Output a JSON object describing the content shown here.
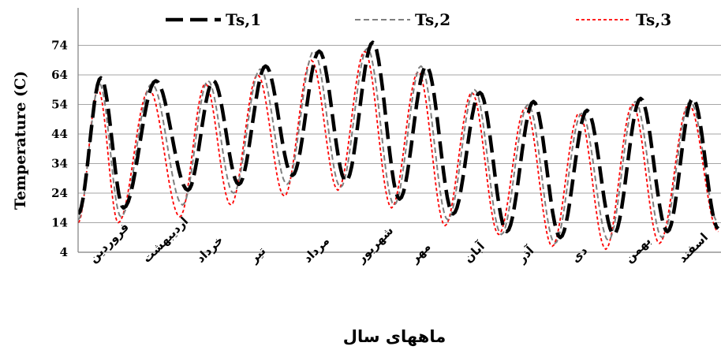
{
  "chart_data": {
    "type": "line",
    "ylabel": "Temperature (C)",
    "xlabel": "ماههای سال",
    "ylim": [
      4,
      84
    ],
    "yticks": [
      4,
      14,
      24,
      34,
      44,
      54,
      64,
      74
    ],
    "grid": "horizontal",
    "legend_position": "top",
    "categories": [
      "فروردین",
      "اردیبهشت",
      "خرداد",
      "تیر",
      "مرداد",
      "شهریور",
      "مهر",
      "آبان",
      "آذر",
      "دی",
      "بهمن",
      "اسفند"
    ],
    "series": [
      {
        "name": "Ts,1",
        "color": "#000000",
        "style": "long-dash",
        "peaks": [
          63,
          62,
          62,
          67,
          72,
          75,
          67,
          58,
          55,
          52,
          56,
          56
        ],
        "troughs": [
          17,
          19,
          25,
          27,
          30,
          28,
          22,
          17,
          11,
          9,
          10,
          11,
          12
        ],
        "trough_x": [
          0,
          0.85,
          2.05,
          3.0,
          4.0,
          5.0,
          6.0,
          7.0,
          8.0,
          9.0,
          10.0,
          11.0,
          11.95
        ]
      },
      {
        "name": "Ts,2",
        "color": "#7f7f7f",
        "style": "dash",
        "peaks": [
          61,
          61,
          62,
          66,
          72,
          73,
          67,
          59,
          54,
          51,
          55,
          55
        ],
        "troughs": [
          15,
          16,
          20,
          24,
          27,
          26,
          20,
          15,
          10,
          7,
          8,
          9,
          14
        ],
        "trough_x": [
          0,
          0.8,
          1.95,
          2.9,
          3.9,
          4.9,
          5.9,
          6.9,
          7.9,
          8.9,
          9.9,
          10.9,
          11.95
        ]
      },
      {
        "name": "Ts,3",
        "color": "#ff0000",
        "style": "short-dash",
        "peaks": [
          59,
          59,
          61,
          64,
          69,
          72,
          65,
          58,
          53,
          51,
          54,
          54
        ],
        "troughs": [
          14,
          14,
          16,
          20,
          23,
          25,
          19,
          13,
          10,
          6,
          5,
          7,
          11
        ],
        "trough_x": [
          0,
          0.75,
          1.9,
          2.85,
          3.85,
          4.85,
          5.85,
          6.85,
          7.85,
          8.85,
          9.85,
          10.85,
          11.95
        ]
      }
    ]
  }
}
